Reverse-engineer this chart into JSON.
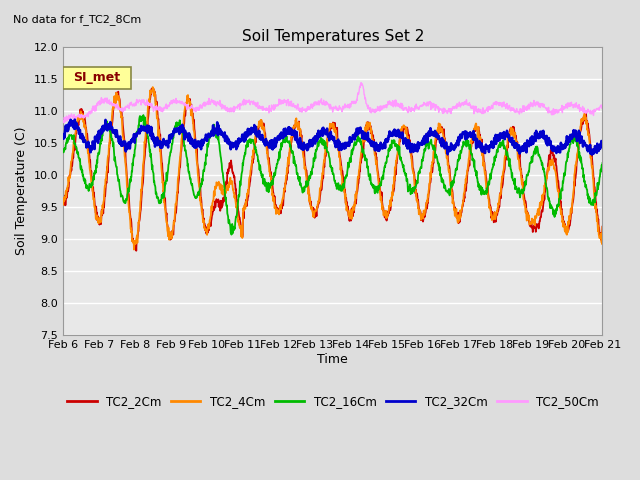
{
  "title": "Soil Temperatures Set 2",
  "top_left_text": "No data for f_TC2_8Cm",
  "ylabel": "Soil Temperature (C)",
  "xlabel": "Time",
  "ylim": [
    7.5,
    12.0
  ],
  "yticks": [
    7.5,
    8.0,
    8.5,
    9.0,
    9.5,
    10.0,
    10.5,
    11.0,
    11.5,
    12.0
  ],
  "x_tick_labels": [
    "Feb 6",
    "Feb 7",
    "Feb 8",
    "Feb 9",
    "Feb 10",
    "Feb 11",
    "Feb 12",
    "Feb 13",
    "Feb 14",
    "Feb 15",
    "Feb 16",
    "Feb 17",
    "Feb 18",
    "Feb 19",
    "Feb 20",
    "Feb 21"
  ],
  "series_colors": [
    "#cc0000",
    "#ff8800",
    "#00bb00",
    "#0000cc",
    "#ff99ff"
  ],
  "series_names": [
    "TC2_2Cm",
    "TC2_4Cm",
    "TC2_16Cm",
    "TC2_32Cm",
    "TC2_50Cm"
  ],
  "line_widths": [
    1.3,
    1.3,
    1.3,
    1.8,
    1.0
  ],
  "legend_label": "SI_met",
  "legend_box_color": "#ffff99",
  "legend_box_border": "#996600",
  "bg_color": "#dddddd",
  "plot_bg_color": "#e8e8e8",
  "grid_color": "#ffffff",
  "n_points": 1440
}
